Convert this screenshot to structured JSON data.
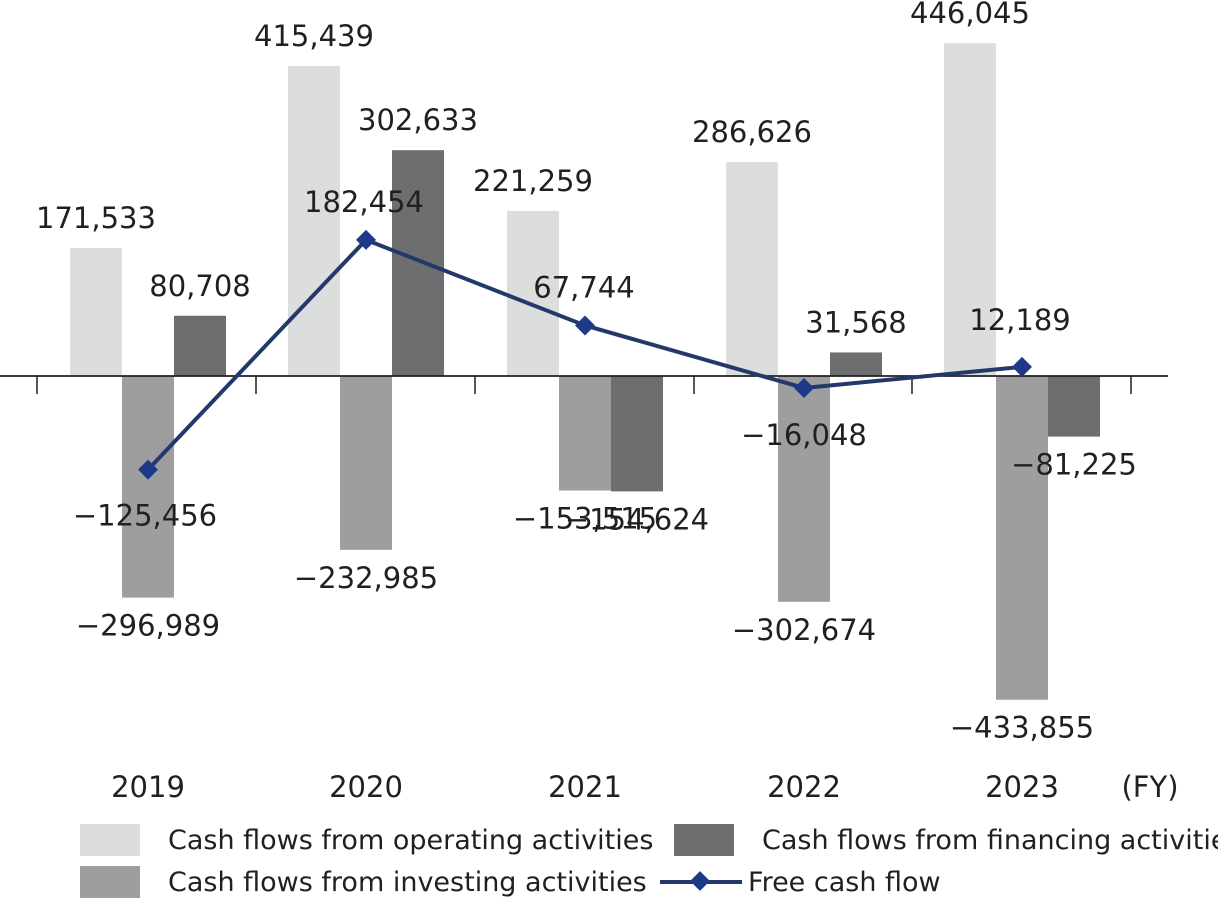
{
  "colors": {
    "operating": "#dcdddd",
    "investing": "#9e9e9f",
    "financing": "#6d6e70",
    "fcf_line": "#24386a",
    "fcf_marker": "#1d3a8a",
    "axis": "#231f20"
  },
  "chart_data": {
    "type": "bar",
    "categories": [
      "2019",
      "2020",
      "2021",
      "2022",
      "2023"
    ],
    "x_unit": "(FY)",
    "series": [
      {
        "name": "Cash flows from operating activities",
        "type": "bar",
        "values": [
          171533,
          415439,
          221259,
          286626,
          446045
        ],
        "labels": [
          "171,533",
          "415,439",
          "221,259",
          "286,626",
          "446,045"
        ]
      },
      {
        "name": "Cash flows from investing activities",
        "type": "bar",
        "values": [
          -296989,
          -232985,
          -153515,
          -302674,
          -433855
        ],
        "labels": [
          "−296,989",
          "−232,985",
          "−153,515",
          "−302,674",
          "−433,855"
        ]
      },
      {
        "name": "Cash flows from financing activities",
        "type": "bar",
        "values": [
          80708,
          302633,
          -154624,
          31568,
          -81225
        ],
        "labels": [
          "80,708",
          "302,633",
          "−154,624",
          "31,568",
          "−81,225"
        ]
      },
      {
        "name": "Free cash flow",
        "type": "line",
        "values": [
          -125456,
          182454,
          67744,
          -16048,
          12189
        ],
        "labels": [
          "−125,456",
          "182,454",
          "67,744",
          "−16,048",
          "12,189"
        ]
      }
    ],
    "grid": false,
    "legend_position": "bottom"
  },
  "legend": {
    "operating": "Cash flows from operating activities",
    "investing": "Cash flows from investing activities",
    "financing": "Cash flows from financing activities",
    "fcf": "Free cash flow"
  }
}
